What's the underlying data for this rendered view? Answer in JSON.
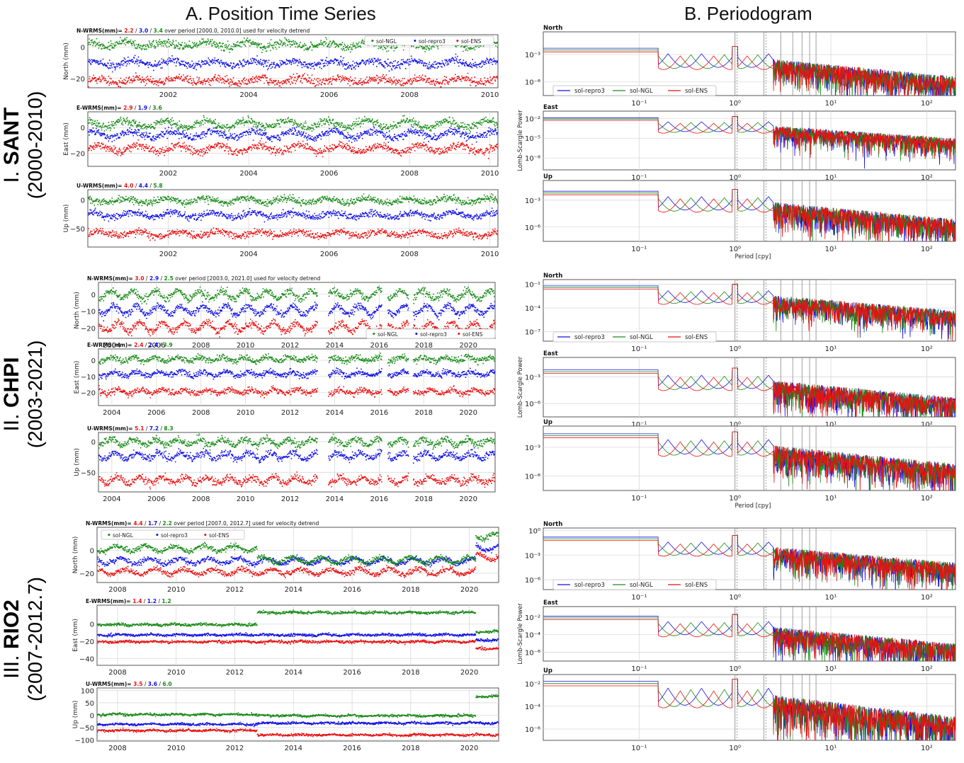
{
  "headers": {
    "a": "A. Position Time Series",
    "b": "B. Periodogram"
  },
  "colors": {
    "ngl": "#178a17",
    "repro3": "#1111e6",
    "ens": "#e81111",
    "grid": "#d9d9d9",
    "frame": "#555555"
  },
  "stations": [
    {
      "id": "sant",
      "roman": "I.",
      "name": "SANT",
      "years": "(2000-2010)",
      "ts_xlim": [
        2000.0,
        2010.2
      ],
      "ts_xticks": [
        2002,
        2004,
        2006,
        2008,
        2010
      ],
      "ts_xtick_labels": [
        "2002",
        "2004",
        "2006",
        "2008",
        "2010"
      ],
      "legend_order": [
        "sol-NGL",
        "sol-repro3",
        "sol-ENS"
      ],
      "gaps": [],
      "components": [
        {
          "key": "N",
          "wrms_label": "N-WRMS(mm)=",
          "wrms_ens": "2.2",
          "wrms_repro3": "3.0",
          "wrms_ngl": "3.4",
          "note": "over period [2000.0, 2010.0] used for velocity detrend",
          "ylabel": "North (mm)",
          "ylim": [
            -26,
            8
          ],
          "yticks": [
            0,
            -20
          ],
          "ytick_labels": [
            "0",
            "−20"
          ],
          "offset": {
            "ngl": 2,
            "repro3": -10,
            "ens": -21
          },
          "scatter": 2.2,
          "seasonal": 1.5
        },
        {
          "key": "E",
          "wrms_label": "E-WRMS(mm)=",
          "wrms_ens": "2.9",
          "wrms_repro3": "1.9",
          "wrms_ngl": "3.6",
          "note": "",
          "ylabel": "East (mm)",
          "ylim": [
            -30,
            12
          ],
          "yticks": [
            0,
            -20
          ],
          "ytick_labels": [
            "0",
            "−20"
          ],
          "offset": {
            "ngl": 3,
            "repro3": -5,
            "ens": -16
          },
          "scatter": 2.5,
          "seasonal": 2.5
        },
        {
          "key": "U",
          "wrms_label": "U-WRMS(mm)=",
          "wrms_ens": "4.0",
          "wrms_repro3": "4.4",
          "wrms_ngl": "5.8",
          "note": "",
          "ylabel": "Up (mm)",
          "ylim": [
            -82,
            18
          ],
          "yticks": [
            0,
            -50
          ],
          "ytick_labels": [
            "0",
            "−50"
          ],
          "offset": {
            "ngl": 0,
            "repro3": -25,
            "ens": -58
          },
          "scatter": 5,
          "seasonal": 4
        }
      ],
      "per": [
        {
          "label": "North",
          "ylim": [
            -7.5,
            -0.5
          ],
          "yticks": [
            -3,
            -6
          ],
          "ytick_labels": [
            "10⁻³",
            "10⁻⁶"
          ],
          "level": -2.3
        },
        {
          "label": "East",
          "ylim": [
            -9.8,
            -0.9
          ],
          "yticks": [
            -2,
            -5,
            -8
          ],
          "ytick_labels": [
            "10⁻²",
            "10⁻⁵",
            "10⁻⁸"
          ],
          "level": -1.9
        },
        {
          "label": "Up",
          "ylim": [
            -7.6,
            -0.8
          ],
          "yticks": [
            -3,
            -6
          ],
          "ytick_labels": [
            "10⁻³",
            "10⁻⁶"
          ],
          "level": -2.0
        }
      ]
    },
    {
      "id": "chpi",
      "roman": "II.",
      "name": "CHPI",
      "years": "(2003-2021)",
      "ts_xlim": [
        2003.4,
        2021.2
      ],
      "ts_xticks": [
        2004,
        2006,
        2008,
        2010,
        2012,
        2014,
        2016,
        2018,
        2020
      ],
      "ts_xtick_labels": [
        "2004",
        "2006",
        "2008",
        "2010",
        "2012",
        "2014",
        "2016",
        "2018",
        "2020"
      ],
      "legend_order": [
        "sol-NGL",
        "sol-repro3",
        "sol-ENS"
      ],
      "gaps": [
        [
          2013.2,
          2013.7
        ],
        [
          2016.1,
          2016.35
        ],
        [
          2017.3,
          2017.5
        ]
      ],
      "components": [
        {
          "key": "N",
          "wrms_label": "N-WRMS(mm)=",
          "wrms_ens": "3.0",
          "wrms_repro3": "2.9",
          "wrms_ngl": "2.5",
          "note": "over period [2003.0, 2021.0] used for velocity detrend",
          "ylabel": "North (mm)",
          "ylim": [
            -26,
            7
          ],
          "yticks": [
            0,
            -10,
            -20
          ],
          "ytick_labels": [
            "0",
            "−10",
            "−20"
          ],
          "offset": {
            "ngl": 0,
            "repro3": -9,
            "ens": -19
          },
          "scatter": 1.8,
          "seasonal": 2.5
        },
        {
          "key": "E",
          "wrms_label": "E-WRMS(mm)=",
          "wrms_ens": "2.4",
          "wrms_repro3": "2.4",
          "wrms_ngl": "3.9",
          "note": "",
          "ylabel": "East (mm)",
          "ylim": [
            -28,
            7
          ],
          "yticks": [
            0,
            -10,
            -20
          ],
          "ytick_labels": [
            "0",
            "−10",
            "−20"
          ],
          "offset": {
            "ngl": 1,
            "repro3": -8,
            "ens": -19
          },
          "scatter": 1.6,
          "seasonal": 1.2
        },
        {
          "key": "U",
          "wrms_label": "U-WRMS(mm)=",
          "wrms_ens": "5.1",
          "wrms_repro3": "7.2",
          "wrms_ngl": "8.3",
          "note": "",
          "ylabel": "Up (mm)",
          "ylim": [
            -82,
            15
          ],
          "yticks": [
            0,
            -50
          ],
          "ytick_labels": [
            "0",
            "−50"
          ],
          "offset": {
            "ngl": 0,
            "repro3": -22,
            "ens": -62
          },
          "scatter": 5,
          "seasonal": 5
        }
      ],
      "per": [
        {
          "label": "North",
          "ylim": [
            -8.2,
            -0.4
          ],
          "yticks": [
            -1,
            -4,
            -7
          ],
          "ytick_labels": [
            "10⁻¹",
            "10⁻⁴",
            "10⁻⁷"
          ],
          "level": -1.2
        },
        {
          "label": "East",
          "ylim": [
            -7.5,
            -0.8
          ],
          "yticks": [
            -3,
            -6
          ],
          "ytick_labels": [
            "10⁻³",
            "10⁻⁶"
          ],
          "level": -2.2
        },
        {
          "label": "Up",
          "ylim": [
            -7.5,
            -0.8
          ],
          "yticks": [
            -3,
            -6
          ],
          "ytick_labels": [
            "10⁻³",
            "10⁻⁶"
          ],
          "level": -1.6
        }
      ]
    },
    {
      "id": "rio2",
      "roman": "III.",
      "name": "RIO2",
      "years": "(2007-2012.7)",
      "ts_xlim": [
        2007.3,
        2021.0
      ],
      "ts_xticks": [
        2008,
        2010,
        2012,
        2014,
        2016,
        2018,
        2020
      ],
      "ts_xtick_labels": [
        "2008",
        "2010",
        "2012",
        "2014",
        "2016",
        "2018",
        "2020"
      ],
      "legend_order": [
        "sol-NGL",
        "sol-repro3",
        "sol-ENS"
      ],
      "gaps": [],
      "components": [
        {
          "key": "N",
          "wrms_label": "N-WRMS(mm)=",
          "wrms_ens": "4.4",
          "wrms_repro3": "1.7",
          "wrms_ngl": "2.2",
          "note": "over period [2007.0, 2012.7] used for velocity detrend",
          "ylabel": "North (mm)",
          "ylim": [
            -28,
            20
          ],
          "yticks": [
            0,
            -20
          ],
          "ytick_labels": [
            "0",
            "−20"
          ],
          "offset": {
            "ngl": 2,
            "repro3": -9,
            "ens": -18
          },
          "scatter": 1.8,
          "seasonal": 2.5
        },
        {
          "key": "E",
          "wrms_label": "E-WRMS(mm)=",
          "wrms_ens": "1.4",
          "wrms_repro3": "1.2",
          "wrms_ngl": "1.2",
          "note": "",
          "ylabel": "East (mm)",
          "ylim": [
            -48,
            22
          ],
          "yticks": [
            0,
            -20,
            -40
          ],
          "ytick_labels": [
            "0",
            "−20",
            "−40"
          ],
          "offset": {
            "ngl": 0,
            "repro3": -12,
            "ens": -20
          },
          "scatter": 1.3,
          "seasonal": 0.6
        },
        {
          "key": "U",
          "wrms_label": "U-WRMS(mm)=",
          "wrms_ens": "3.5",
          "wrms_repro3": "3.6",
          "wrms_ngl": "6.0",
          "note": "",
          "ylabel": "Up (mm)",
          "ylim": [
            -105,
            110
          ],
          "yticks": [
            100,
            50,
            0,
            -50,
            -100
          ],
          "ytick_labels": [
            "100",
            "50",
            "0",
            "−50",
            "−100"
          ],
          "offset": {
            "ngl": 5,
            "repro3": -35,
            "ens": -60
          },
          "scatter": 4,
          "seasonal": 2
        }
      ],
      "per": [
        {
          "label": "North",
          "ylim": [
            -7.2,
            0.3
          ],
          "yticks": [
            0,
            -3,
            -6
          ],
          "ytick_labels": [
            "10⁰",
            "10⁻³",
            "10⁻⁶"
          ],
          "level": -0.8
        },
        {
          "label": "East",
          "ylim": [
            -7,
            -0.8
          ],
          "yticks": [
            -2,
            -4,
            -6
          ],
          "ytick_labels": [
            "10⁻²",
            "10⁻⁴",
            "10⁻⁶"
          ],
          "level": -1.9
        },
        {
          "label": "Up",
          "ylim": [
            -7,
            -1.2
          ],
          "yticks": [
            -2,
            -4,
            -6
          ],
          "ytick_labels": [
            "10⁻²",
            "10⁻⁴",
            "10⁻⁶"
          ],
          "level": -1.8
        }
      ]
    }
  ],
  "per_xticks": [
    -1,
    0,
    1,
    2
  ],
  "per_xtick_labels": [
    "10⁻¹",
    "10⁰",
    "10¹",
    "10²"
  ],
  "per_xlim_log": [
    -2.0,
    2.3
  ],
  "per_xlabel": "Period [cpy]",
  "per_ylabel": "Lomb-Scargle Power",
  "per_legend_order": [
    "sol-repro3",
    "sol-NGL",
    "sol-ENS"
  ],
  "per_vlines": [
    1,
    2,
    3,
    4,
    5,
    6,
    7
  ],
  "chart_data": {
    "type": "scatter",
    "title": "",
    "panels": [
      "A. Position Time Series",
      "B. Periodogram"
    ],
    "series": [
      {
        "name": "sol-NGL"
      },
      {
        "name": "sol-repro3"
      },
      {
        "name": "sol-ENS"
      }
    ],
    "stations": [
      "I. SANT (2000-2010)",
      "II. CHPI (2003-2021)",
      "III. RIO2 (2007-2012.7)"
    ],
    "wrms_mm": {
      "SANT": {
        "N": [
          2.2,
          3.0,
          3.4
        ],
        "E": [
          2.9,
          1.9,
          3.6
        ],
        "U": [
          4.0,
          4.4,
          5.8
        ]
      },
      "CHPI": {
        "N": [
          3.0,
          2.9,
          2.5
        ],
        "E": [
          2.4,
          2.4,
          3.9
        ],
        "U": [
          5.1,
          7.2,
          8.3
        ]
      },
      "RIO2": {
        "N": [
          4.4,
          1.7,
          2.2
        ],
        "E": [
          1.4,
          1.2,
          1.2
        ],
        "U": [
          3.5,
          3.6,
          6.0
        ]
      }
    },
    "wrms_order": [
      "sol-ENS",
      "sol-repro3",
      "sol-NGL"
    ],
    "xlabel_periodogram": "Period [cpy]",
    "ylabel_periodogram": "Lomb-Scargle Power"
  }
}
